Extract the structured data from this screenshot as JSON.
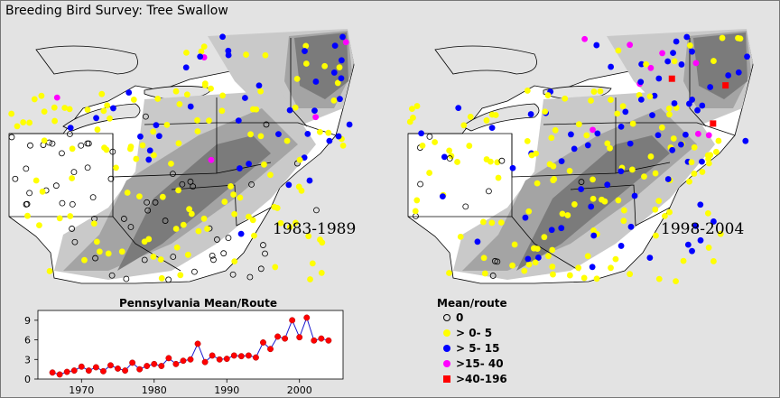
{
  "title": "Breeding Bird Survey: Tree Swallow",
  "maps": [
    {
      "period": "1983-1989"
    },
    {
      "period": "1998-2004"
    }
  ],
  "chart_data": {
    "type": "line",
    "title": "Pennsylvania Mean/Route",
    "x": [
      1966,
      1967,
      1968,
      1969,
      1970,
      1971,
      1972,
      1973,
      1974,
      1975,
      1976,
      1977,
      1978,
      1979,
      1980,
      1981,
      1982,
      1983,
      1984,
      1985,
      1986,
      1987,
      1988,
      1989,
      1990,
      1991,
      1992,
      1993,
      1994,
      1995,
      1996,
      1997,
      1998,
      1999,
      2000,
      2001,
      2002,
      2003,
      2004
    ],
    "values": [
      1.0,
      0.7,
      1.1,
      1.3,
      1.9,
      1.3,
      1.8,
      1.2,
      2.1,
      1.6,
      1.3,
      2.5,
      1.5,
      2.0,
      2.3,
      2.0,
      3.2,
      2.3,
      2.8,
      3.0,
      5.4,
      2.6,
      3.6,
      3.0,
      3.1,
      3.6,
      3.5,
      3.6,
      3.3,
      5.6,
      4.6,
      6.5,
      6.2,
      9.0,
      6.4,
      9.4,
      5.9,
      6.2,
      5.9
    ],
    "xticks": [
      "1970",
      "1980",
      "1990",
      "2000"
    ],
    "yticks": [
      "0",
      "3",
      "6",
      "9"
    ],
    "xlim": [
      1964,
      2006
    ],
    "ylim": [
      0,
      10.5
    ],
    "line_color": "#1a1ad0",
    "marker_color": "#ff0000",
    "grid": false
  },
  "legend": {
    "title": "Mean/route",
    "items": [
      {
        "label": "0",
        "symbol": "open-circle",
        "color": "#000000"
      },
      {
        "label": "> 0-  5",
        "symbol": "circle",
        "color": "#ffff00"
      },
      {
        "label": "> 5- 15",
        "symbol": "circle",
        "color": "#0000ff"
      },
      {
        "label": ">15- 40",
        "symbol": "circle",
        "color": "#ff00ff"
      },
      {
        "label": ">40-196",
        "symbol": "square",
        "color": "#ff0000"
      }
    ]
  },
  "colors": {
    "background": "#e3e3e3",
    "land": "#ffffff",
    "abundance_light": "#c9c9c9",
    "abundance_mid": "#a4a4a4",
    "abundance_dark": "#7b7b7b"
  }
}
